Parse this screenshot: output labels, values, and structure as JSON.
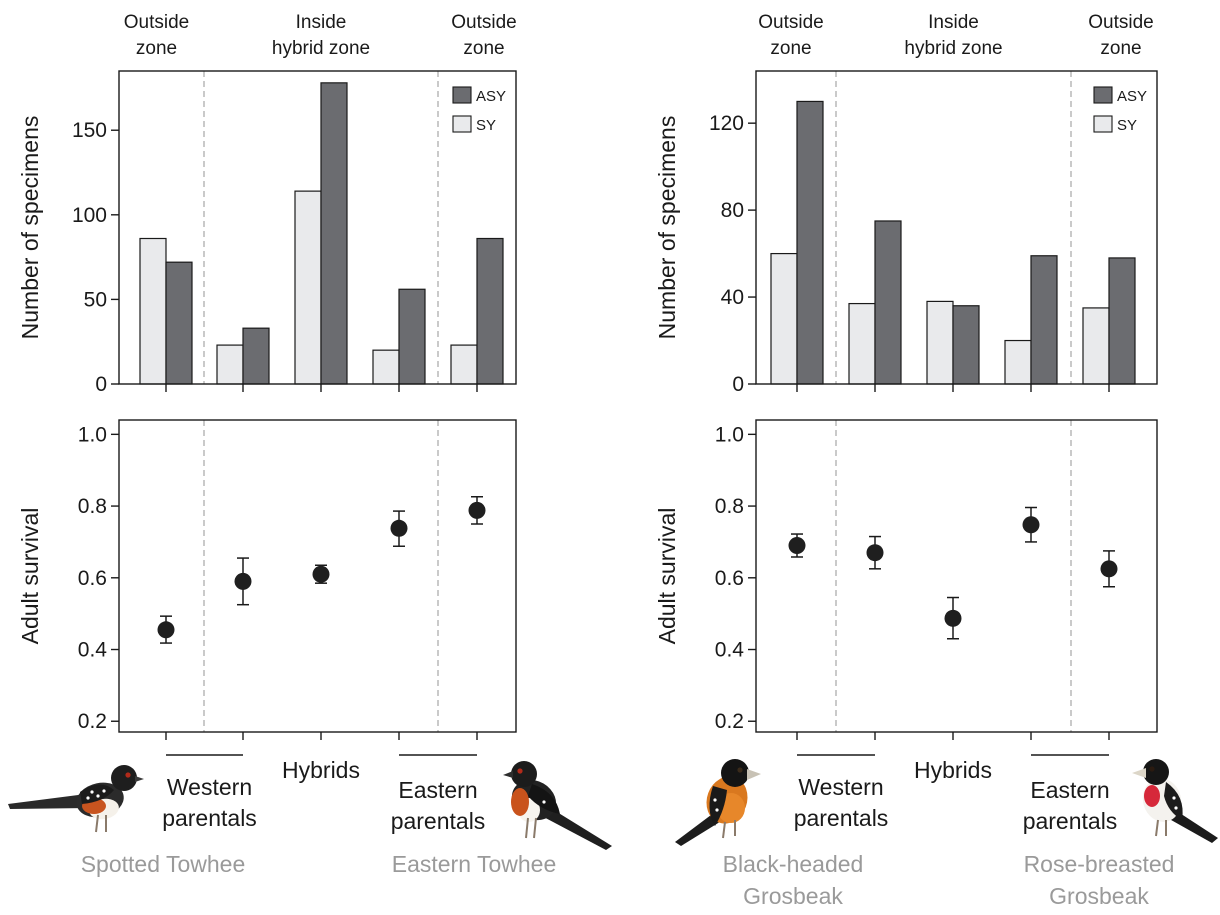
{
  "colors": {
    "asy": "#6b6c70",
    "sy": "#e9eaec",
    "point": "#1f1f1f",
    "divider": "#bdbdbd",
    "species_label": "#9a9a9a"
  },
  "panels": [
    {
      "zone_labels": [
        [
          "Outside",
          "zone"
        ],
        [
          "Inside",
          "hybrid zone"
        ],
        [
          "Outside",
          "zone"
        ]
      ],
      "group_labels": {
        "western": [
          "Western",
          "parentals"
        ],
        "hybrids": "Hybrids",
        "eastern": [
          "Eastern",
          "parentals"
        ]
      },
      "species": {
        "left": [
          "Spotted Towhee"
        ],
        "right": [
          "Eastern Towhee"
        ]
      },
      "bird_icons": [
        "spotted-towhee-illustration",
        "eastern-towhee-illustration"
      ]
    },
    {
      "zone_labels": [
        [
          "Outside",
          "zone"
        ],
        [
          "Inside",
          "hybrid zone"
        ],
        [
          "Outside",
          "zone"
        ]
      ],
      "group_labels": {
        "western": [
          "Western",
          "parentals"
        ],
        "hybrids": "Hybrids",
        "eastern": [
          "Eastern",
          "parentals"
        ]
      },
      "species": {
        "left": [
          "Black-headed",
          "Grosbeak"
        ],
        "right": [
          "Rose-breasted",
          "Grosbeak"
        ]
      },
      "bird_icons": [
        "black-headed-grosbeak-illustration",
        "rose-breasted-grosbeak-illustration"
      ]
    }
  ],
  "chart_data": [
    {
      "type": "bar",
      "ylabel": "Number of specimens",
      "ylim": [
        0,
        185
      ],
      "yticks": [
        0,
        50,
        100,
        150
      ],
      "n_groups": 5,
      "legend": "top-right",
      "series": [
        {
          "name": "SY",
          "values": [
            86,
            23,
            114,
            20,
            23
          ]
        },
        {
          "name": "ASY",
          "values": [
            72,
            33,
            178,
            56,
            86
          ]
        }
      ],
      "legend_order": [
        "ASY",
        "SY"
      ]
    },
    {
      "type": "scatter",
      "ylabel": "Adult survival",
      "ylim": [
        0.17,
        1.04
      ],
      "yticks": [
        0.2,
        0.4,
        0.6,
        0.8,
        1.0
      ],
      "n_groups": 5,
      "values": [
        0.455,
        0.59,
        0.61,
        0.738,
        0.788
      ],
      "lower": [
        0.418,
        0.525,
        0.585,
        0.688,
        0.75
      ],
      "upper": [
        0.493,
        0.655,
        0.635,
        0.786,
        0.826
      ]
    },
    {
      "type": "bar",
      "ylabel": "Number of specimens",
      "ylim": [
        0,
        144
      ],
      "yticks": [
        0,
        40,
        80,
        120
      ],
      "n_groups": 5,
      "legend": "top-right",
      "series": [
        {
          "name": "SY",
          "values": [
            60,
            37,
            38,
            20,
            35
          ]
        },
        {
          "name": "ASY",
          "values": [
            130,
            75,
            36,
            59,
            58
          ]
        }
      ],
      "legend_order": [
        "ASY",
        "SY"
      ]
    },
    {
      "type": "scatter",
      "ylabel": "Adult survival",
      "ylim": [
        0.17,
        1.04
      ],
      "yticks": [
        0.2,
        0.4,
        0.6,
        0.8,
        1.0
      ],
      "n_groups": 5,
      "values": [
        0.69,
        0.67,
        0.487,
        0.748,
        0.625
      ],
      "lower": [
        0.658,
        0.625,
        0.43,
        0.7,
        0.575
      ],
      "upper": [
        0.722,
        0.715,
        0.545,
        0.796,
        0.675
      ]
    }
  ]
}
